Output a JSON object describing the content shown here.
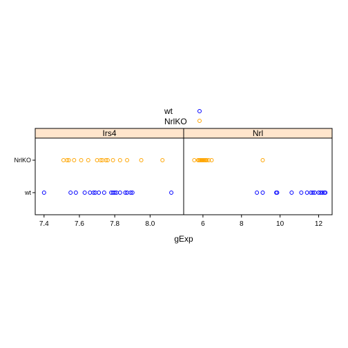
{
  "chart_data": {
    "type": "scatter",
    "layout": "lattice dotplot, two panels side by side, shared y axis",
    "xlabel": "gExp",
    "ylabel": "",
    "y_categories": [
      "wt",
      "NrlKO"
    ],
    "legend": {
      "placement": "top-center",
      "entries": [
        {
          "name": "wt",
          "color": "#0000ff",
          "marker": "open-circle"
        },
        {
          "name": "NrlKO",
          "color": "#ffa500",
          "marker": "open-circle"
        }
      ]
    },
    "strip_color": "#ffe5cc",
    "grid": false,
    "panels": [
      {
        "title": "Irs4",
        "xlim": [
          7.35,
          8.19
        ],
        "xticks": [
          7.4,
          7.6,
          7.8,
          8.0
        ],
        "series": [
          {
            "name": "wt",
            "color": "#0000ff",
            "x": [
              7.4,
              7.55,
              7.58,
              7.63,
              7.66,
              7.68,
              7.69,
              7.71,
              7.74,
              7.78,
              7.79,
              7.8,
              7.81,
              7.83,
              7.86,
              7.87,
              7.89,
              7.9,
              8.12
            ]
          },
          {
            "name": "NrlKO",
            "color": "#ffa500",
            "x": [
              7.51,
              7.53,
              7.54,
              7.57,
              7.61,
              7.65,
              7.7,
              7.72,
              7.73,
              7.75,
              7.76,
              7.79,
              7.83,
              7.87,
              7.95,
              8.07
            ]
          }
        ]
      },
      {
        "title": "Nrl",
        "xlim": [
          5.0,
          12.7
        ],
        "xticks": [
          6,
          8,
          10,
          12
        ],
        "series": [
          {
            "name": "wt",
            "color": "#0000ff",
            "x": [
              8.8,
              9.1,
              9.8,
              9.85,
              10.6,
              11.1,
              11.4,
              11.6,
              11.7,
              11.8,
              12.0,
              12.1,
              12.2,
              12.3,
              12.35
            ]
          },
          {
            "name": "NrlKO",
            "color": "#ffa500",
            "x": [
              5.55,
              5.75,
              5.8,
              5.85,
              5.9,
              5.95,
              6.0,
              6.05,
              6.1,
              6.15,
              6.2,
              6.3,
              6.45,
              9.1
            ]
          }
        ]
      }
    ]
  }
}
